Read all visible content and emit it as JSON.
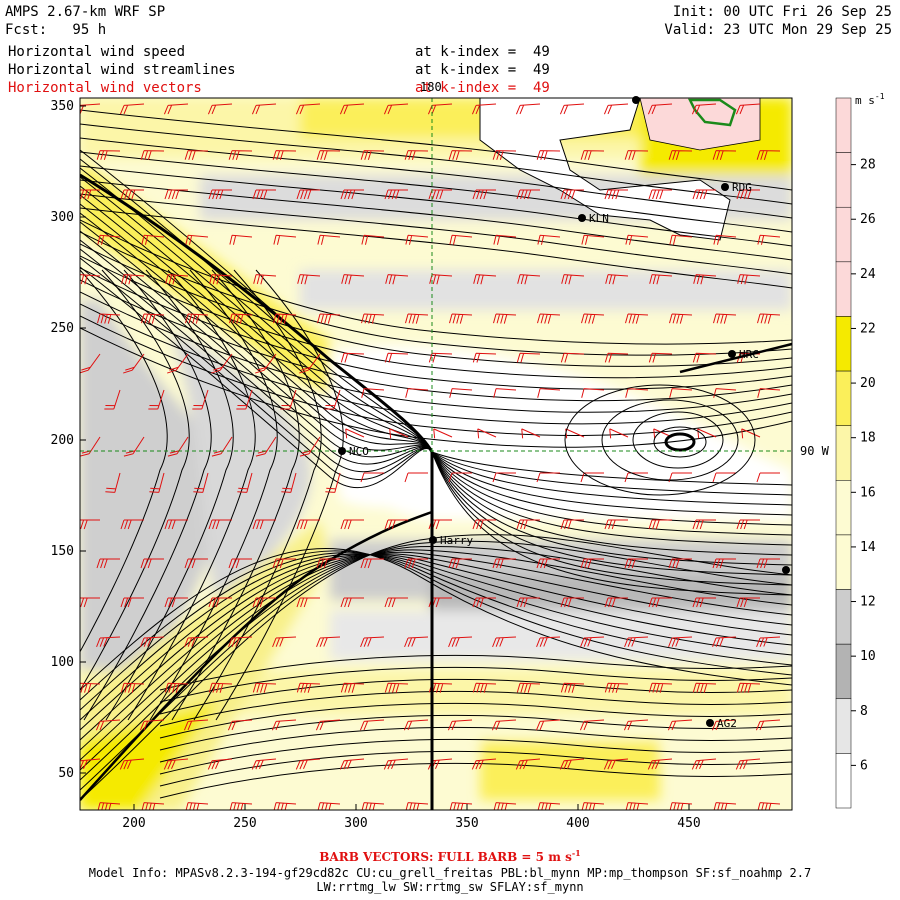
{
  "header": {
    "title": "AMPS 2.67-km WRF SP",
    "forecast": "Fcst:   95 h",
    "init": "Init: 00 UTC Fri 26 Sep 25",
    "valid": "Valid: 23 UTC Mon 29 Sep 25"
  },
  "fields": [
    {
      "name": "Horizontal wind speed",
      "level": "at k-index =  49",
      "color": "#000000"
    },
    {
      "name": "Horizontal wind streamlines",
      "level": "at k-index =  49",
      "color": "#000000"
    },
    {
      "name": "Horizontal wind vectors",
      "level": "at k-index =  49",
      "color": "#e01010"
    }
  ],
  "map": {
    "x_ticks": [
      "200",
      "250",
      "300",
      "350",
      "400",
      "450"
    ],
    "y_ticks": [
      "350",
      "300",
      "250",
      "200",
      "150",
      "100",
      "50"
    ],
    "meridian_label": "180",
    "meridian_label_right": "90 W",
    "stations": [
      {
        "id": "NCO",
        "label": "NCO"
      },
      {
        "id": "Harry",
        "label": "Harry"
      },
      {
        "id": "KLN",
        "label": "KLN"
      },
      {
        "id": "RDG",
        "label": "RDG"
      },
      {
        "id": "HRC",
        "label": "HRC"
      },
      {
        "id": "AG2",
        "label": "AG2"
      }
    ]
  },
  "colorbar": {
    "unit": "m s-1",
    "tick_labels": [
      "28",
      "26",
      "24",
      "22",
      "20",
      "18",
      "16",
      "14",
      "12",
      "10",
      "8",
      "6"
    ],
    "colors": {
      "white": "#ffffff",
      "light_gray": "#e6e6e6",
      "gray": "#cccccc",
      "dark_gray": "#b3b3b3",
      "pale_yellow": "#fdfbd2",
      "light_yellow": "#fcf6a8",
      "yellow": "#fbef5a",
      "bright_yellow": "#f5ea00",
      "pink": "#fcd9d9"
    }
  },
  "footer": {
    "barb_note": "BARB VECTORS: FULL BARB = 5 m s",
    "barb_unit_exp": "-1",
    "model_info": "Model Info: MPASv8.2.3-194-gf29cd82c CU:cu_grell_freitas PBL:bl_mynn MP:mp_thompson SF:sf_noahmp 2.7",
    "physics": "LW:rrtmg_lw SW:rrtmg_sw SFLAY:sf_mynn"
  }
}
